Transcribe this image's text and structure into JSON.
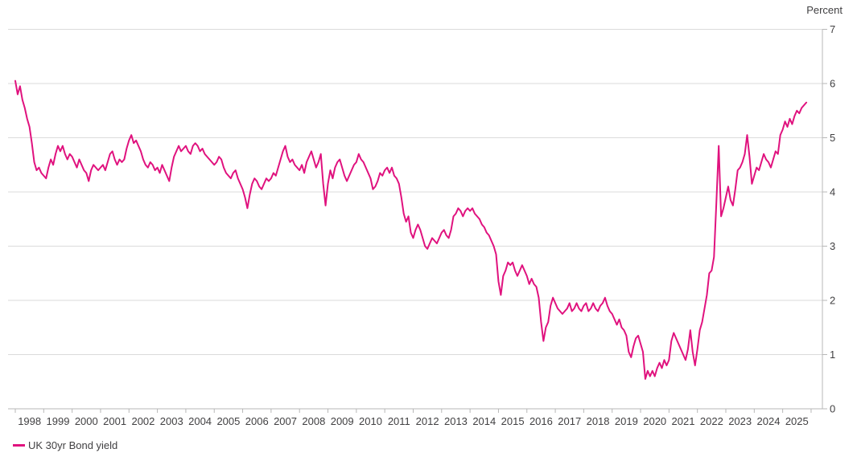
{
  "chart_data": {
    "type": "line",
    "title": "",
    "xlabel": "",
    "ylabel": "Percent",
    "ylim": [
      0,
      7
    ],
    "y_ticks": [
      0,
      1,
      2,
      3,
      4,
      5,
      6,
      7
    ],
    "x_start_year": 1998,
    "x_end_boundary_year": 2026,
    "x_tick_labels": [
      "1998",
      "1999",
      "2000",
      "2001",
      "2002",
      "2003",
      "2004",
      "2005",
      "2006",
      "2007",
      "2008",
      "2009",
      "2010",
      "2011",
      "2012",
      "2013",
      "2014",
      "2015",
      "2016",
      "2017",
      "2018",
      "2019",
      "2020",
      "2021",
      "2022",
      "2023",
      "2024",
      "2025"
    ],
    "grid": "horizontal",
    "legend_position": "bottom-left",
    "series": [
      {
        "name": "UK 30yr Bond yield",
        "color": "#E0127E",
        "interval": "monthly",
        "start": "1998-01",
        "values": [
          6.05,
          5.8,
          5.95,
          5.7,
          5.55,
          5.35,
          5.2,
          4.9,
          4.55,
          4.4,
          4.45,
          4.35,
          4.3,
          4.25,
          4.45,
          4.6,
          4.5,
          4.7,
          4.85,
          4.75,
          4.85,
          4.7,
          4.6,
          4.7,
          4.65,
          4.55,
          4.45,
          4.6,
          4.5,
          4.4,
          4.35,
          4.2,
          4.4,
          4.5,
          4.45,
          4.4,
          4.45,
          4.5,
          4.4,
          4.55,
          4.7,
          4.75,
          4.6,
          4.5,
          4.6,
          4.55,
          4.6,
          4.8,
          4.95,
          5.05,
          4.9,
          4.95,
          4.85,
          4.75,
          4.6,
          4.5,
          4.45,
          4.55,
          4.5,
          4.4,
          4.45,
          4.35,
          4.5,
          4.4,
          4.3,
          4.2,
          4.45,
          4.65,
          4.75,
          4.85,
          4.75,
          4.8,
          4.85,
          4.75,
          4.7,
          4.85,
          4.9,
          4.85,
          4.75,
          4.8,
          4.7,
          4.65,
          4.6,
          4.55,
          4.5,
          4.55,
          4.65,
          4.6,
          4.45,
          4.35,
          4.3,
          4.25,
          4.35,
          4.4,
          4.25,
          4.15,
          4.05,
          3.9,
          3.7,
          3.95,
          4.15,
          4.25,
          4.2,
          4.1,
          4.05,
          4.15,
          4.25,
          4.2,
          4.25,
          4.35,
          4.3,
          4.45,
          4.6,
          4.75,
          4.85,
          4.65,
          4.55,
          4.6,
          4.5,
          4.45,
          4.4,
          4.5,
          4.35,
          4.55,
          4.65,
          4.75,
          4.6,
          4.45,
          4.55,
          4.7,
          4.15,
          3.75,
          4.15,
          4.4,
          4.25,
          4.45,
          4.55,
          4.6,
          4.45,
          4.3,
          4.2,
          4.3,
          4.4,
          4.5,
          4.55,
          4.7,
          4.6,
          4.55,
          4.45,
          4.35,
          4.25,
          4.05,
          4.1,
          4.2,
          4.35,
          4.3,
          4.4,
          4.45,
          4.35,
          4.45,
          4.3,
          4.25,
          4.15,
          3.9,
          3.6,
          3.45,
          3.55,
          3.25,
          3.15,
          3.3,
          3.4,
          3.3,
          3.15,
          3.0,
          2.95,
          3.05,
          3.15,
          3.1,
          3.05,
          3.15,
          3.25,
          3.3,
          3.2,
          3.15,
          3.3,
          3.55,
          3.6,
          3.7,
          3.65,
          3.55,
          3.65,
          3.7,
          3.65,
          3.7,
          3.6,
          3.55,
          3.5,
          3.4,
          3.35,
          3.25,
          3.2,
          3.1,
          3.0,
          2.85,
          2.35,
          2.1,
          2.45,
          2.55,
          2.7,
          2.65,
          2.7,
          2.55,
          2.45,
          2.55,
          2.65,
          2.55,
          2.45,
          2.3,
          2.4,
          2.3,
          2.25,
          2.05,
          1.6,
          1.25,
          1.5,
          1.6,
          1.9,
          2.05,
          1.95,
          1.85,
          1.8,
          1.75,
          1.8,
          1.85,
          1.95,
          1.8,
          1.85,
          1.95,
          1.85,
          1.8,
          1.9,
          1.95,
          1.8,
          1.85,
          1.95,
          1.85,
          1.8,
          1.9,
          1.95,
          2.05,
          1.9,
          1.8,
          1.75,
          1.65,
          1.55,
          1.65,
          1.5,
          1.45,
          1.35,
          1.05,
          0.95,
          1.15,
          1.3,
          1.35,
          1.2,
          1.05,
          0.55,
          0.7,
          0.6,
          0.7,
          0.6,
          0.75,
          0.85,
          0.75,
          0.9,
          0.8,
          0.9,
          1.25,
          1.4,
          1.3,
          1.2,
          1.1,
          1.0,
          0.9,
          1.1,
          1.45,
          1.05,
          0.8,
          1.1,
          1.45,
          1.6,
          1.85,
          2.1,
          2.5,
          2.55,
          2.8,
          3.8,
          4.85,
          3.55,
          3.7,
          3.9,
          4.1,
          3.85,
          3.75,
          4.05,
          4.4,
          4.45,
          4.55,
          4.7,
          5.05,
          4.65,
          4.15,
          4.3,
          4.45,
          4.4,
          4.55,
          4.7,
          4.6,
          4.55,
          4.45,
          4.6,
          4.75,
          4.7,
          5.05,
          5.15,
          5.3,
          5.2,
          5.35,
          5.25,
          5.4,
          5.5,
          5.45,
          5.55,
          5.6,
          5.65
        ]
      }
    ]
  },
  "legend": {
    "label": "UK 30yr Bond yield"
  },
  "colors": {
    "line": "#E0127E",
    "grid": "#DBDBDB",
    "axis": "#B7B7B7",
    "text": "#414042"
  }
}
